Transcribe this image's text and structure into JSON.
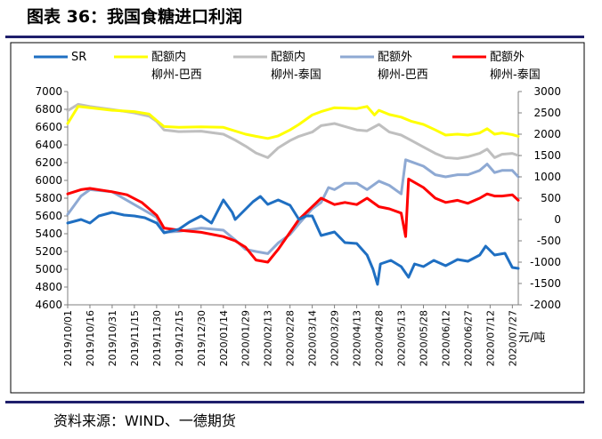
{
  "figure": {
    "title": "图表 36：我国食糖进口利润",
    "source": "资料来源：WIND、一德期货"
  },
  "chart_data": {
    "type": "line",
    "left_axis": {
      "min": 4600,
      "max": 7000,
      "step": 200,
      "ticks": [
        "4600",
        "4800",
        "5000",
        "5200",
        "5400",
        "5600",
        "5800",
        "6000",
        "6200",
        "6400",
        "6600",
        "6800",
        "7000"
      ]
    },
    "right_axis": {
      "min": -2000,
      "max": 3000,
      "step": 500,
      "unit": "元/吨",
      "ticks": [
        "-2000",
        "-1500",
        "-1000",
        "-500",
        "0",
        "500",
        "1000",
        "1500",
        "2000",
        "2500",
        "3000"
      ]
    },
    "x_ticks": [
      "2019/10/01",
      "2019/10/16",
      "2019/10/31",
      "2019/11/15",
      "2019/11/30",
      "2019/12/15",
      "2019/12/30",
      "2020/01/14",
      "2020/01/29",
      "2020/02/13",
      "2020/02/28",
      "2020/03/14",
      "2020/03/29",
      "2020/04/13",
      "2020/04/28",
      "2020/05/13",
      "2020/05/28",
      "2020/06/12",
      "2020/06/27",
      "2020/07/12",
      "2020/07/27"
    ],
    "x_range": [
      "2019/10/01",
      "2020/07/31"
    ],
    "legend_position": "top",
    "series": [
      {
        "name": "SR",
        "label_lines": [
          "SR"
        ],
        "axis": "left",
        "color": "#1f6fc2",
        "points": [
          [
            "2019/10/01",
            5520
          ],
          [
            "2019/10/10",
            5560
          ],
          [
            "2019/10/16",
            5520
          ],
          [
            "2019/10/22",
            5600
          ],
          [
            "2019/10/31",
            5640
          ],
          [
            "2019/11/08",
            5610
          ],
          [
            "2019/11/15",
            5600
          ],
          [
            "2019/11/22",
            5580
          ],
          [
            "2019/11/30",
            5520
          ],
          [
            "2019/12/05",
            5410
          ],
          [
            "2019/12/15",
            5450
          ],
          [
            "2019/12/22",
            5530
          ],
          [
            "2019/12/30",
            5600
          ],
          [
            "2020/01/06",
            5520
          ],
          [
            "2020/01/14",
            5780
          ],
          [
            "2020/01/20",
            5640
          ],
          [
            "2020/01/22",
            5560
          ],
          [
            "2020/02/03",
            5760
          ],
          [
            "2020/02/08",
            5820
          ],
          [
            "2020/02/13",
            5730
          ],
          [
            "2020/02/20",
            5780
          ],
          [
            "2020/02/28",
            5720
          ],
          [
            "2020/03/05",
            5560
          ],
          [
            "2020/03/10",
            5600
          ],
          [
            "2020/03/14",
            5600
          ],
          [
            "2020/03/20",
            5380
          ],
          [
            "2020/03/29",
            5420
          ],
          [
            "2020/04/05",
            5300
          ],
          [
            "2020/04/13",
            5290
          ],
          [
            "2020/04/20",
            5160
          ],
          [
            "2020/04/24",
            5000
          ],
          [
            "2020/04/27",
            4830
          ],
          [
            "2020/04/29",
            5060
          ],
          [
            "2020/05/06",
            5100
          ],
          [
            "2020/05/13",
            5030
          ],
          [
            "2020/05/18",
            4910
          ],
          [
            "2020/05/22",
            5060
          ],
          [
            "2020/05/28",
            5030
          ],
          [
            "2020/06/04",
            5100
          ],
          [
            "2020/06/12",
            5040
          ],
          [
            "2020/06/20",
            5110
          ],
          [
            "2020/06/27",
            5090
          ],
          [
            "2020/07/05",
            5160
          ],
          [
            "2020/07/09",
            5260
          ],
          [
            "2020/07/15",
            5160
          ],
          [
            "2020/07/22",
            5180
          ],
          [
            "2020/07/27",
            5020
          ],
          [
            "2020/07/31",
            5010
          ]
        ]
      },
      {
        "name": "配额内柳州-巴西",
        "label_lines": [
          "配额内",
          "柳州-巴西"
        ],
        "axis": "right",
        "color": "#ffff00",
        "points": [
          [
            "2019/10/01",
            2250
          ],
          [
            "2019/10/08",
            2650
          ],
          [
            "2019/10/16",
            2620
          ],
          [
            "2019/10/31",
            2560
          ],
          [
            "2019/11/15",
            2530
          ],
          [
            "2019/11/25",
            2470
          ],
          [
            "2019/11/30",
            2320
          ],
          [
            "2019/12/05",
            2180
          ],
          [
            "2019/12/15",
            2160
          ],
          [
            "2019/12/30",
            2170
          ],
          [
            "2020/01/14",
            2160
          ],
          [
            "2020/01/29",
            2000
          ],
          [
            "2020/02/05",
            1950
          ],
          [
            "2020/02/13",
            1900
          ],
          [
            "2020/02/20",
            1960
          ],
          [
            "2020/02/28",
            2100
          ],
          [
            "2020/03/05",
            2230
          ],
          [
            "2020/03/14",
            2450
          ],
          [
            "2020/03/20",
            2530
          ],
          [
            "2020/03/29",
            2620
          ],
          [
            "2020/04/13",
            2600
          ],
          [
            "2020/04/20",
            2650
          ],
          [
            "2020/04/25",
            2450
          ],
          [
            "2020/04/28",
            2560
          ],
          [
            "2020/05/05",
            2460
          ],
          [
            "2020/05/13",
            2400
          ],
          [
            "2020/05/20",
            2300
          ],
          [
            "2020/05/28",
            2230
          ],
          [
            "2020/06/05",
            2100
          ],
          [
            "2020/06/12",
            1980
          ],
          [
            "2020/06/20",
            2000
          ],
          [
            "2020/06/27",
            1980
          ],
          [
            "2020/07/05",
            2030
          ],
          [
            "2020/07/10",
            2130
          ],
          [
            "2020/07/15",
            2000
          ],
          [
            "2020/07/20",
            2030
          ],
          [
            "2020/07/27",
            1990
          ],
          [
            "2020/07/31",
            1950
          ]
        ]
      },
      {
        "name": "配额内柳州-泰国",
        "label_lines": [
          "配额内",
          "柳州-泰国"
        ],
        "axis": "right",
        "color": "#bfbfbf",
        "points": [
          [
            "2019/10/01",
            2550
          ],
          [
            "2019/10/08",
            2700
          ],
          [
            "2019/10/16",
            2650
          ],
          [
            "2019/10/31",
            2580
          ],
          [
            "2019/11/15",
            2500
          ],
          [
            "2019/11/25",
            2420
          ],
          [
            "2019/11/30",
            2300
          ],
          [
            "2019/12/05",
            2100
          ],
          [
            "2019/12/15",
            2060
          ],
          [
            "2019/12/30",
            2070
          ],
          [
            "2020/01/14",
            2000
          ],
          [
            "2020/01/22",
            1860
          ],
          [
            "2020/01/29",
            1720
          ],
          [
            "2020/02/05",
            1560
          ],
          [
            "2020/02/13",
            1450
          ],
          [
            "2020/02/20",
            1680
          ],
          [
            "2020/02/28",
            1850
          ],
          [
            "2020/03/05",
            1950
          ],
          [
            "2020/03/14",
            2050
          ],
          [
            "2020/03/20",
            2200
          ],
          [
            "2020/03/29",
            2250
          ],
          [
            "2020/04/13",
            2100
          ],
          [
            "2020/04/20",
            2080
          ],
          [
            "2020/04/28",
            2230
          ],
          [
            "2020/05/05",
            2050
          ],
          [
            "2020/05/13",
            1980
          ],
          [
            "2020/05/20",
            1850
          ],
          [
            "2020/05/28",
            1700
          ],
          [
            "2020/06/05",
            1550
          ],
          [
            "2020/06/12",
            1450
          ],
          [
            "2020/06/20",
            1430
          ],
          [
            "2020/06/27",
            1470
          ],
          [
            "2020/07/05",
            1550
          ],
          [
            "2020/07/10",
            1650
          ],
          [
            "2020/07/15",
            1450
          ],
          [
            "2020/07/20",
            1530
          ],
          [
            "2020/07/27",
            1550
          ],
          [
            "2020/07/31",
            1500
          ]
        ]
      },
      {
        "name": "配额外柳州-巴西",
        "label_lines": [
          "配额外",
          "柳州-巴西"
        ],
        "axis": "right",
        "color": "#8ea9d3",
        "points": [
          [
            "2019/10/01",
            120
          ],
          [
            "2019/10/10",
            550
          ],
          [
            "2019/10/16",
            700
          ],
          [
            "2019/10/31",
            650
          ],
          [
            "2019/11/10",
            450
          ],
          [
            "2019/11/20",
            250
          ],
          [
            "2019/11/30",
            50
          ],
          [
            "2019/12/05",
            -300
          ],
          [
            "2019/12/15",
            -280
          ],
          [
            "2019/12/30",
            -200
          ],
          [
            "2020/01/14",
            -250
          ],
          [
            "2020/01/22",
            -480
          ],
          [
            "2020/01/29",
            -700
          ],
          [
            "2020/02/05",
            -750
          ],
          [
            "2020/02/13",
            -800
          ],
          [
            "2020/02/20",
            -550
          ],
          [
            "2020/02/28",
            -350
          ],
          [
            "2020/03/05",
            -100
          ],
          [
            "2020/03/14",
            250
          ],
          [
            "2020/03/20",
            400
          ],
          [
            "2020/03/25",
            750
          ],
          [
            "2020/03/29",
            700
          ],
          [
            "2020/04/05",
            850
          ],
          [
            "2020/04/13",
            850
          ],
          [
            "2020/04/20",
            700
          ],
          [
            "2020/04/28",
            900
          ],
          [
            "2020/05/05",
            800
          ],
          [
            "2020/05/13",
            600
          ],
          [
            "2020/05/16",
            1400
          ],
          [
            "2020/05/20",
            1350
          ],
          [
            "2020/05/28",
            1250
          ],
          [
            "2020/06/05",
            1050
          ],
          [
            "2020/06/12",
            1000
          ],
          [
            "2020/06/20",
            1050
          ],
          [
            "2020/06/27",
            1050
          ],
          [
            "2020/07/05",
            1150
          ],
          [
            "2020/07/10",
            1300
          ],
          [
            "2020/07/15",
            1100
          ],
          [
            "2020/07/20",
            1150
          ],
          [
            "2020/07/27",
            1150
          ],
          [
            "2020/07/31",
            1000
          ]
        ]
      },
      {
        "name": "配额外柳州-泰国",
        "label_lines": [
          "配额外",
          "柳州-泰国"
        ],
        "axis": "right",
        "color": "#ff0000",
        "points": [
          [
            "2019/10/01",
            600
          ],
          [
            "2019/10/10",
            700
          ],
          [
            "2019/10/16",
            730
          ],
          [
            "2019/10/31",
            650
          ],
          [
            "2019/11/10",
            580
          ],
          [
            "2019/11/20",
            400
          ],
          [
            "2019/11/30",
            100
          ],
          [
            "2019/12/05",
            -200
          ],
          [
            "2019/12/15",
            -250
          ],
          [
            "2019/12/30",
            -300
          ],
          [
            "2020/01/14",
            -400
          ],
          [
            "2020/01/22",
            -500
          ],
          [
            "2020/01/29",
            -650
          ],
          [
            "2020/02/05",
            -950
          ],
          [
            "2020/02/13",
            -1000
          ],
          [
            "2020/02/20",
            -700
          ],
          [
            "2020/02/28",
            -300
          ],
          [
            "2020/03/05",
            0
          ],
          [
            "2020/03/14",
            300
          ],
          [
            "2020/03/20",
            500
          ],
          [
            "2020/03/29",
            350
          ],
          [
            "2020/04/05",
            400
          ],
          [
            "2020/04/13",
            350
          ],
          [
            "2020/04/20",
            500
          ],
          [
            "2020/04/28",
            300
          ],
          [
            "2020/05/05",
            250
          ],
          [
            "2020/05/13",
            150
          ],
          [
            "2020/05/16",
            -400
          ],
          [
            "2020/05/18",
            950
          ],
          [
            "2020/05/28",
            750
          ],
          [
            "2020/06/05",
            500
          ],
          [
            "2020/06/12",
            400
          ],
          [
            "2020/06/20",
            450
          ],
          [
            "2020/06/27",
            380
          ],
          [
            "2020/07/05",
            500
          ],
          [
            "2020/07/10",
            600
          ],
          [
            "2020/07/15",
            550
          ],
          [
            "2020/07/20",
            550
          ],
          [
            "2020/07/27",
            580
          ],
          [
            "2020/07/31",
            450
          ]
        ]
      }
    ]
  }
}
